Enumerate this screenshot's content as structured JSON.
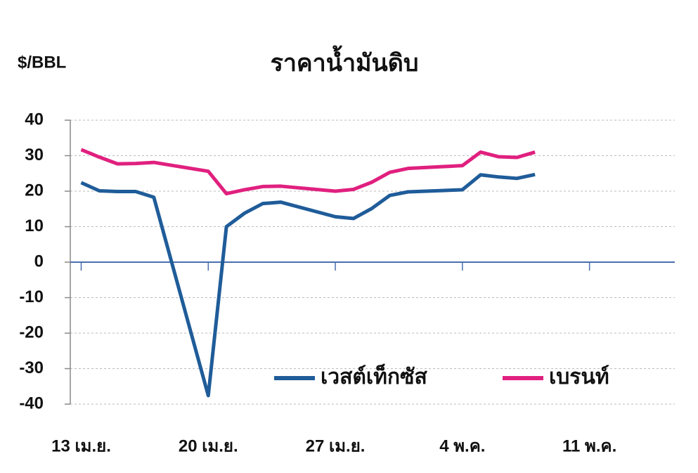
{
  "chart_data": {
    "type": "line",
    "title": "ราคาน้ำมันดิบ",
    "y_label": "$/BBL",
    "x": [
      0,
      1,
      2,
      3,
      4,
      7,
      8,
      9,
      10,
      11,
      14,
      15,
      16,
      17,
      18,
      21,
      22,
      23,
      24,
      25
    ],
    "series": [
      {
        "name": "เวสต์เท็กซัส",
        "color": "#1f5c99",
        "values": [
          22.4,
          20.1,
          19.9,
          19.9,
          18.3,
          -37.6,
          10.0,
          13.8,
          16.5,
          16.9,
          12.8,
          12.3,
          15.1,
          18.8,
          19.8,
          20.4,
          24.6,
          24.0,
          23.6,
          24.7
        ]
      },
      {
        "name": "เบรนท์",
        "color": "#e0207f",
        "values": [
          31.7,
          29.6,
          27.7,
          27.8,
          28.1,
          25.6,
          19.3,
          20.4,
          21.3,
          21.4,
          20.0,
          20.5,
          22.5,
          25.3,
          26.4,
          27.2,
          31.0,
          29.7,
          29.5,
          31.0
        ]
      }
    ],
    "xlim": [
      -0.6,
      32.7
    ],
    "xticks": [
      {
        "value": 0,
        "label": "13 เม.ย."
      },
      {
        "value": 7,
        "label": "20 เม.ย."
      },
      {
        "value": 14,
        "label": "27 เม.ย."
      },
      {
        "value": 21,
        "label": "4 พ.ค."
      },
      {
        "value": 28,
        "label": "11 พ.ค."
      }
    ],
    "ylim": [
      -40,
      40
    ],
    "yticks": [
      -40,
      -30,
      -20,
      -10,
      0,
      10,
      20,
      30,
      40
    ],
    "grid": true
  }
}
